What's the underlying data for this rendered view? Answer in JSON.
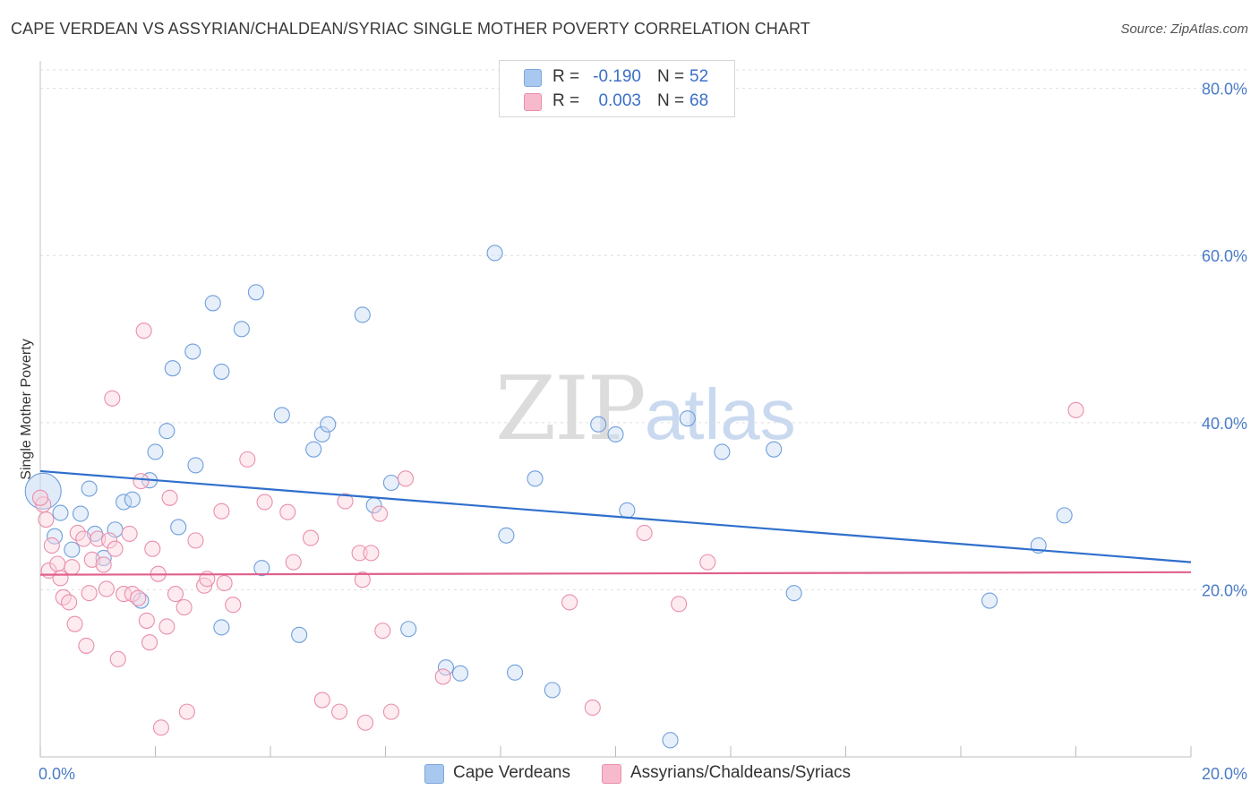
{
  "title": "CAPE VERDEAN VS ASSYRIAN/CHALDEAN/SYRIAC SINGLE MOTHER POVERTY CORRELATION CHART",
  "source": "Source: ZipAtlas.com",
  "watermark": {
    "zip": "ZIP",
    "atlas": "atlas"
  },
  "legend": {
    "rows": [
      {
        "r_label": "R =",
        "r_value": "-0.190",
        "n_label": "N =",
        "n_value": "52",
        "color": "#a8c8f0",
        "border": "#7fa8dc"
      },
      {
        "r_label": "R =",
        "r_value": "0.003",
        "n_label": "N =",
        "n_value": "68",
        "color": "#f7b9cc",
        "border": "#e98fab"
      }
    ]
  },
  "bottom_legend": [
    {
      "label": "Cape Verdeans",
      "color": "#a8c8f0",
      "border": "#7fa8dc"
    },
    {
      "label": "Assyrians/Chaldeans/Syriacs",
      "color": "#f7b9cc",
      "border": "#e98fab"
    }
  ],
  "chart_data": {
    "type": "scatter",
    "title": "CAPE VERDEAN VS ASSYRIAN/CHALDEAN/SYRIAC SINGLE MOTHER POVERTY CORRELATION CHART",
    "xlabel": "",
    "ylabel": "Single Mother Poverty",
    "xlim": [
      0,
      20
    ],
    "ylim": [
      0,
      82
    ],
    "x_tick_labels": [
      "0.0%",
      "20.0%"
    ],
    "y_ticks": [
      20,
      40,
      60,
      80
    ],
    "y_tick_labels": [
      "20.0%",
      "40.0%",
      "60.0%",
      "80.0%"
    ],
    "grid": true,
    "legend_position": "top-center",
    "series": [
      {
        "name": "Cape Verdeans",
        "color": "#6f9fdc",
        "fill": "#c7dbf5",
        "trend": {
          "x": [
            0,
            20
          ],
          "y": [
            34.2,
            23.3
          ],
          "color": "#2f6fcc"
        },
        "points": [
          [
            0.05,
            31.8
          ],
          [
            0.25,
            26.4
          ],
          [
            0.35,
            29.2
          ],
          [
            0.55,
            24.8
          ],
          [
            0.7,
            29.1
          ],
          [
            0.85,
            32.1
          ],
          [
            0.95,
            26.7
          ],
          [
            1.1,
            23.8
          ],
          [
            1.3,
            27.2
          ],
          [
            1.45,
            30.5
          ],
          [
            1.6,
            30.8
          ],
          [
            1.75,
            18.7
          ],
          [
            1.9,
            33.1
          ],
          [
            2.0,
            36.5
          ],
          [
            2.2,
            39.0
          ],
          [
            2.3,
            46.5
          ],
          [
            2.4,
            27.5
          ],
          [
            2.65,
            48.5
          ],
          [
            2.7,
            34.9
          ],
          [
            3.0,
            54.3
          ],
          [
            3.15,
            46.1
          ],
          [
            3.15,
            15.5
          ],
          [
            3.5,
            51.2
          ],
          [
            3.75,
            55.6
          ],
          [
            3.85,
            22.6
          ],
          [
            4.2,
            40.9
          ],
          [
            4.5,
            14.6
          ],
          [
            4.75,
            36.8
          ],
          [
            4.9,
            38.6
          ],
          [
            5.0,
            39.8
          ],
          [
            5.6,
            52.9
          ],
          [
            5.8,
            30.1
          ],
          [
            6.1,
            32.8
          ],
          [
            6.4,
            15.3
          ],
          [
            7.05,
            10.7
          ],
          [
            7.3,
            10.0
          ],
          [
            7.9,
            60.3
          ],
          [
            8.1,
            26.5
          ],
          [
            8.25,
            10.1
          ],
          [
            8.6,
            33.3
          ],
          [
            8.9,
            8.0
          ],
          [
            9.7,
            39.8
          ],
          [
            10.0,
            38.6
          ],
          [
            10.2,
            29.5
          ],
          [
            10.95,
            2.0
          ],
          [
            11.25,
            40.5
          ],
          [
            11.85,
            36.5
          ],
          [
            12.75,
            36.8
          ],
          [
            13.1,
            19.6
          ],
          [
            16.5,
            18.7
          ],
          [
            17.35,
            25.3
          ],
          [
            17.8,
            28.9
          ]
        ]
      },
      {
        "name": "Assyrians/Chaldeans/Syriacs",
        "color": "#e98fab",
        "fill": "#fad2de",
        "trend": {
          "x": [
            0,
            20
          ],
          "y": [
            21.8,
            22.1
          ],
          "color": "#e0608c"
        },
        "points": [
          [
            0.05,
            30.2
          ],
          [
            0.1,
            28.4
          ],
          [
            0.15,
            22.3
          ],
          [
            0.2,
            25.3
          ],
          [
            0.3,
            23.1
          ],
          [
            0.35,
            21.4
          ],
          [
            0.4,
            19.1
          ],
          [
            0.5,
            18.5
          ],
          [
            0.55,
            22.7
          ],
          [
            0.6,
            15.9
          ],
          [
            0.65,
            26.8
          ],
          [
            0.75,
            26.1
          ],
          [
            0.8,
            13.3
          ],
          [
            0.85,
            19.6
          ],
          [
            0.9,
            23.6
          ],
          [
            1.0,
            26.1
          ],
          [
            1.1,
            23.0
          ],
          [
            1.15,
            20.1
          ],
          [
            1.2,
            25.9
          ],
          [
            1.25,
            42.9
          ],
          [
            1.3,
            24.9
          ],
          [
            1.35,
            11.7
          ],
          [
            1.45,
            19.5
          ],
          [
            1.55,
            26.7
          ],
          [
            1.6,
            19.5
          ],
          [
            1.7,
            19.0
          ],
          [
            1.75,
            33.0
          ],
          [
            1.8,
            51.0
          ],
          [
            1.85,
            16.3
          ],
          [
            1.9,
            13.7
          ],
          [
            1.95,
            24.9
          ],
          [
            2.05,
            21.9
          ],
          [
            2.1,
            3.5
          ],
          [
            2.2,
            15.6
          ],
          [
            2.25,
            31.0
          ],
          [
            2.35,
            19.5
          ],
          [
            2.5,
            17.9
          ],
          [
            2.55,
            5.4
          ],
          [
            2.7,
            25.9
          ],
          [
            2.85,
            20.5
          ],
          [
            2.9,
            21.3
          ],
          [
            3.15,
            29.4
          ],
          [
            3.2,
            20.8
          ],
          [
            3.35,
            18.2
          ],
          [
            3.6,
            35.6
          ],
          [
            3.9,
            30.5
          ],
          [
            4.3,
            29.3
          ],
          [
            4.4,
            23.3
          ],
          [
            4.7,
            26.2
          ],
          [
            4.9,
            6.8
          ],
          [
            5.2,
            5.4
          ],
          [
            5.3,
            30.6
          ],
          [
            5.55,
            24.4
          ],
          [
            5.6,
            21.2
          ],
          [
            5.65,
            4.1
          ],
          [
            5.75,
            24.4
          ],
          [
            5.9,
            29.1
          ],
          [
            5.95,
            15.1
          ],
          [
            6.1,
            5.4
          ],
          [
            6.35,
            33.3
          ],
          [
            7.0,
            9.6
          ],
          [
            9.2,
            18.5
          ],
          [
            9.6,
            5.9
          ],
          [
            10.5,
            26.8
          ],
          [
            11.1,
            18.3
          ],
          [
            11.6,
            23.3
          ],
          [
            18.0,
            41.5
          ],
          [
            0.0,
            31.0
          ]
        ]
      }
    ]
  }
}
